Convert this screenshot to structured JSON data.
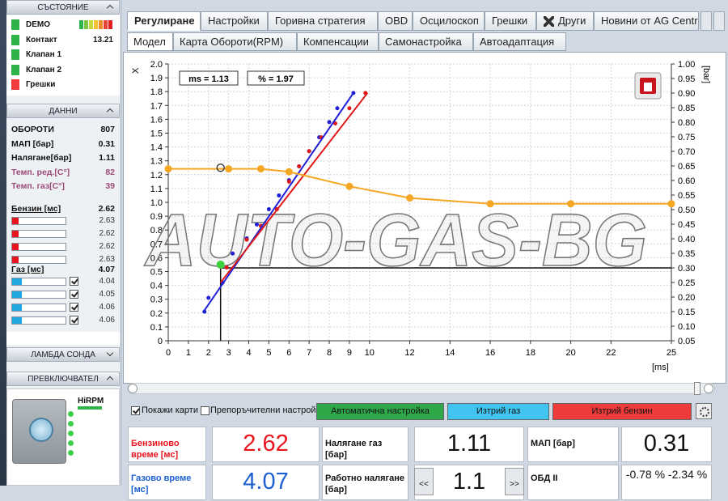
{
  "sidebar": {
    "status": {
      "title": "СЪСТОЯНИЕ",
      "items": [
        {
          "label": "DEMO",
          "color": "#2db34a"
        },
        {
          "label": "Контакт",
          "color": "#2db34a",
          "value": 13.21
        },
        {
          "label": "Клапан 1",
          "color": "#2db34a"
        },
        {
          "label": "Клапан 2",
          "color": "#2db34a"
        },
        {
          "label": "Грешки",
          "color": "#f03c3c"
        }
      ]
    },
    "data": {
      "title": "ДАННИ",
      "rows": [
        {
          "label": "ОБОРОТИ",
          "value": 807
        },
        {
          "label": "МАП [бар]",
          "value": 0.31
        },
        {
          "label": "Налягане[бар]",
          "value": 1.11
        },
        {
          "label": "Темп. ред.[C°]",
          "value": 82,
          "color": "#9c4a7a"
        },
        {
          "label": "Темп. газ[C°]",
          "value": 39,
          "color": "#9c4a7a"
        }
      ],
      "petrol": {
        "label": "Бензин [мс]",
        "value": 2.62,
        "color": "#e8141e",
        "injectors": [
          2.63,
          2.62,
          2.62,
          2.63
        ]
      },
      "gas": {
        "label": "Газ [мс]",
        "value": 4.07,
        "color": "#22a8e0",
        "injectors": [
          4.04,
          4.05,
          4.06,
          4.06
        ]
      }
    },
    "lambda": {
      "title": "ЛАМБДА СОНДА"
    },
    "switch": {
      "title": "ПРЕВКЛЮЧВАТЕЛ",
      "label": "HiRPM"
    }
  },
  "tabs": [
    "Регулиране",
    "Настройки",
    "Горивна стратегия",
    "OBD",
    "Осцилоскоп",
    "Грешки",
    "Други",
    "Новини от AG Centr"
  ],
  "subtabs": [
    "Модел",
    "Карта Обороти(RPM)",
    "Компенсации",
    "Самонастройка",
    "Автоадаптация"
  ],
  "chart": {
    "type": "scatter",
    "xlim": [
      0,
      25
    ],
    "xticks": [
      0,
      1,
      2,
      3,
      4,
      5,
      6,
      7,
      8,
      9,
      10,
      12,
      14,
      16,
      18,
      20,
      22,
      25
    ],
    "ylim": [
      0,
      2
    ],
    "yticks": [
      0,
      0.1,
      0.2,
      0.3,
      0.4,
      0.5,
      0.6,
      0.7,
      0.8,
      0.9,
      {
        "value": 1,
        "label": "1.0"
      },
      1.1,
      1.2,
      1.3,
      1.4,
      1.5,
      1.6,
      1.7,
      1.8,
      1.9,
      {
        "value": 2,
        "label": "2.0"
      }
    ],
    "y2lim": [
      0.05,
      1
    ],
    "y2ticks": [
      0.05,
      {
        "value": 0.1,
        "label": "0.10"
      },
      0.15,
      {
        "value": 0.2,
        "label": "0.20"
      },
      0.25,
      {
        "value": 0.3,
        "label": "0.30"
      },
      0.35,
      {
        "value": 0.4,
        "label": "0.40"
      },
      0.45,
      {
        "value": 0.5,
        "label": "0.50"
      },
      0.55,
      {
        "value": 0.6,
        "label": "0.60"
      },
      0.65,
      {
        "value": 0.7,
        "label": "0.70"
      },
      0.75,
      {
        "value": 0.8,
        "label": "0.80"
      },
      0.85,
      {
        "value": 0.9,
        "label": "0.90"
      },
      0.95,
      {
        "value": 1,
        "label": "1.00"
      }
    ],
    "xlabel": "[ms]",
    "ylabel": "X",
    "y2label": "[bar]",
    "grid": true,
    "annotations": [
      "ms = 1.13",
      "% = 1.97"
    ],
    "watermark": "AUTO-GAS-BG",
    "series": [
      {
        "style": "points",
        "color": "#1f1fd6",
        "x": [
          1.8,
          2.0,
          2.7,
          2.9,
          3.2,
          3.9,
          4.4,
          5.0,
          5.5,
          6.0,
          6.5,
          7.0,
          7.5,
          8.0,
          8.4,
          9.2
        ],
        "values": [
          0.21,
          0.31,
          0.42,
          0.53,
          0.63,
          0.74,
          0.84,
          0.95,
          1.05,
          1.16,
          1.26,
          1.37,
          1.47,
          1.58,
          1.68,
          1.79
        ]
      },
      {
        "style": "points",
        "color": "#e01818",
        "x": [
          2.9,
          3.9,
          4.6,
          5.4,
          6.0,
          6.5,
          7.0,
          7.6,
          8.3,
          9.0,
          9.8
        ],
        "values": [
          0.53,
          0.73,
          0.83,
          0.95,
          1.15,
          1.26,
          1.37,
          1.47,
          1.57,
          1.68,
          1.79
        ]
      },
      {
        "style": "line",
        "color": "#1f1fd6",
        "x": [
          1.8,
          9.2
        ],
        "values": [
          0.22,
          1.79
        ]
      },
      {
        "style": "line",
        "color": "#e01818",
        "x": [
          2.6,
          9.9
        ],
        "values": [
          0.42,
          1.79
        ]
      },
      {
        "style": "line-markers",
        "axis": "y2",
        "color": "#f5a623",
        "x": [
          0,
          3,
          4.6,
          6,
          9,
          12,
          16,
          20,
          25
        ],
        "values": [
          0.64,
          0.64,
          0.64,
          0.63,
          0.58,
          0.54,
          0.52,
          0.52,
          0.52
        ]
      },
      {
        "style": "big-point",
        "color": "#3dd13d",
        "x": [
          2.6
        ],
        "values": [
          0.55
        ]
      },
      {
        "style": "open",
        "color": "#222222",
        "x": [
          2.6
        ],
        "values": [
          1.25
        ]
      }
    ],
    "cursor": {
      "x": 2.6,
      "y2": 0.3
    }
  },
  "controls": {
    "show_maps": {
      "label": "Покажи карти",
      "checked": true
    },
    "recommended": {
      "label": "Препоръчителни настройки",
      "checked": false
    },
    "buttons": [
      {
        "label": "Автоматична настройка",
        "color": "#2fa84a"
      },
      {
        "label": "Изтрий газ",
        "color": "#41c4ef"
      },
      {
        "label": "Изтрий бензин",
        "color": "#ee3b3b"
      }
    ]
  },
  "readouts": [
    {
      "label": "Бензиново време [мс]",
      "value": 2.62,
      "color": "#e8141e"
    },
    {
      "label": "Налягане газ [бар]",
      "value": 1.11
    },
    {
      "label": "МАП [бар]",
      "value": 0.31
    },
    {
      "label": "Газово време [мс]",
      "value": 4.07,
      "color": "#1b5fd0"
    },
    {
      "label": "Работно налягане [бар]",
      "value": 1.1,
      "prev": "<<",
      "next": ">>"
    },
    {
      "label": "ОБД II",
      "value": "-0.78 %  -2.34 %"
    }
  ]
}
